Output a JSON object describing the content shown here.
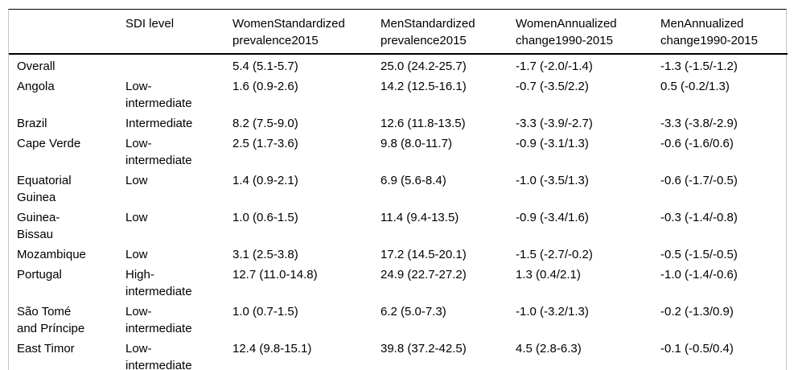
{
  "colors": {
    "background": "#ffffff",
    "text": "#000000",
    "rule": "#000000",
    "side_border": "#c4c4c4"
  },
  "table": {
    "columns": [
      {
        "key": "country",
        "label": ""
      },
      {
        "key": "sdi",
        "label": "SDI level"
      },
      {
        "key": "women_std",
        "label": "WomenStandardized\nprevalence2015"
      },
      {
        "key": "men_std",
        "label": "MenStandardized\nprevalence2015"
      },
      {
        "key": "women_ann",
        "label": "WomenAnnualized\nchange1990-2015"
      },
      {
        "key": "men_ann",
        "label": "MenAnnualized\nchange1990-2015"
      }
    ],
    "rows": [
      {
        "country": "Overall",
        "sdi": "",
        "women_std": "5.4 (5.1-5.7)",
        "men_std": "25.0 (24.2-25.7)",
        "women_ann": "-1.7 (-2.0/-1.4)",
        "men_ann": "-1.3 (-1.5/-1.2)"
      },
      {
        "country": "Angola",
        "sdi": "Low-\nintermediate",
        "women_std": "1.6 (0.9-2.6)",
        "men_std": "14.2 (12.5-16.1)",
        "women_ann": "-0.7 (-3.5/2.2)",
        "men_ann": "0.5 (-0.2/1.3)"
      },
      {
        "country": "Brazil",
        "sdi": "Intermediate",
        "women_std": "8.2 (7.5-9.0)",
        "men_std": "12.6 (11.8-13.5)",
        "women_ann": "-3.3 (-3.9/-2.7)",
        "men_ann": "-3.3 (-3.8/-2.9)"
      },
      {
        "country": "Cape Verde",
        "sdi": "Low-\nintermediate",
        "women_std": "2.5 (1.7-3.6)",
        "men_std": "9.8 (8.0-11.7)",
        "women_ann": "-0.9 (-3.1/1.3)",
        "men_ann": "-0.6 (-1.6/0.6)"
      },
      {
        "country": "Equatorial\nGuinea",
        "sdi": "Low",
        "women_std": "1.4 (0.9-2.1)",
        "men_std": "6.9 (5.6-8.4)",
        "women_ann": "-1.0 (-3.5/1.3)",
        "men_ann": "-0.6 (-1.7/-0.5)"
      },
      {
        "country": "Guinea-\nBissau",
        "sdi": "Low",
        "women_std": "1.0 (0.6-1.5)",
        "men_std": "11.4 (9.4-13.5)",
        "women_ann": "-0.9 (-3.4/1.6)",
        "men_ann": "-0.3 (-1.4/-0.8)"
      },
      {
        "country": "Mozambique",
        "sdi": "Low",
        "women_std": "3.1 (2.5-3.8)",
        "men_std": "17.2 (14.5-20.1)",
        "women_ann": "-1.5 (-2.7/-0.2)",
        "men_ann": "-0.5 (-1.5/-0.5)"
      },
      {
        "country": "Portugal",
        "sdi": "High-\nintermediate",
        "women_std": "12.7 (11.0-14.8)",
        "men_std": "24.9 (22.7-27.2)",
        "women_ann": "1.3 (0.4/2.1)",
        "men_ann": "-1.0 (-1.4/-0.6)"
      },
      {
        "country": "São Tomé\nand Príncipe",
        "sdi": "Low-\nintermediate",
        "women_std": "1.0 (0.7-1.5)",
        "men_std": "6.2 (5.0-7.3)",
        "women_ann": "-1.0 (-3.2/1.3)",
        "men_ann": "-0.2 (-1.3/0.9)"
      },
      {
        "country": "East Timor",
        "sdi": "Low-\nintermediate",
        "women_std": "12.4 (9.8-15.1)",
        "men_std": "39.8 (37.2-42.5)",
        "women_ann": "4.5 (2.8-6.3)",
        "men_ann": "-0.1 (-0.5/0.4)"
      }
    ]
  }
}
